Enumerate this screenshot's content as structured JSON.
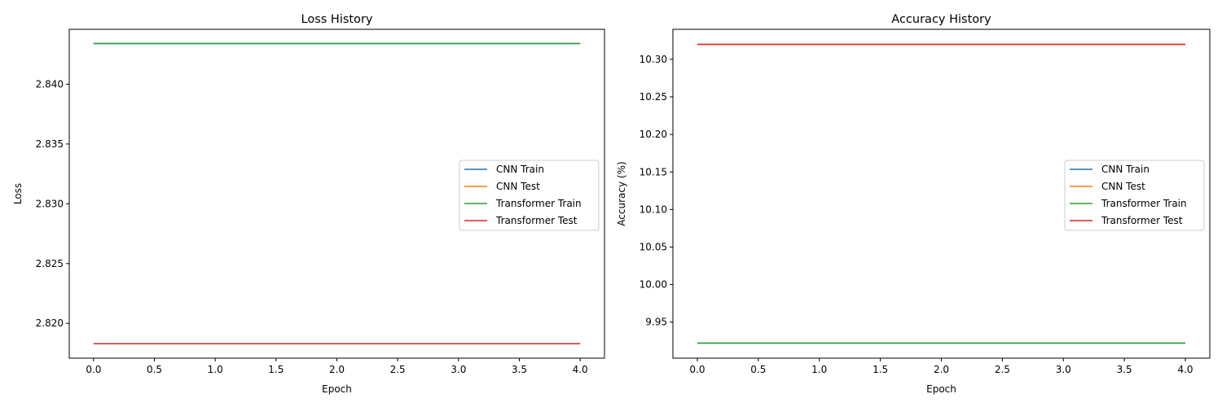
{
  "chart_data": [
    {
      "type": "line",
      "title": "Loss History",
      "xlabel": "Epoch",
      "ylabel": "Loss",
      "x": [
        0,
        1,
        2,
        3,
        4
      ],
      "xlim": [
        -0.2,
        4.2
      ],
      "ylim": [
        2.81709,
        2.84459
      ],
      "xticks": [
        0.0,
        0.5,
        1.0,
        1.5,
        2.0,
        2.5,
        3.0,
        3.5,
        4.0
      ],
      "xtick_labels": [
        "0.0",
        "0.5",
        "1.0",
        "1.5",
        "2.0",
        "2.5",
        "3.0",
        "3.5",
        "4.0"
      ],
      "yticks": [
        2.82,
        2.825,
        2.83,
        2.835,
        2.84
      ],
      "ytick_labels": [
        "2.820",
        "2.825",
        "2.830",
        "2.835",
        "2.840"
      ],
      "grid": false,
      "legend_position": "center-right",
      "series": [
        {
          "name": "CNN Train",
          "color": "#1f77b4",
          "values": [
            2.8434,
            2.8434,
            2.8434,
            2.8434,
            2.8434
          ]
        },
        {
          "name": "CNN Test",
          "color": "#ff7f0e",
          "values": [
            2.8183,
            2.8183,
            2.8183,
            2.8183,
            2.8183
          ]
        },
        {
          "name": "Transformer Train",
          "color": "#2ca02c",
          "values": [
            2.8434,
            2.8434,
            2.8434,
            2.8434,
            2.8434
          ]
        },
        {
          "name": "Transformer Test",
          "color": "#d62728",
          "values": [
            2.8183,
            2.8183,
            2.8183,
            2.8183,
            2.8183
          ]
        }
      ]
    },
    {
      "type": "line",
      "title": "Accuracy History",
      "xlabel": "Epoch",
      "ylabel": "Accuracy (%)",
      "x": [
        0,
        1,
        2,
        3,
        4
      ],
      "xlim": [
        -0.2,
        4.2
      ],
      "ylim": [
        9.902,
        10.34
      ],
      "xticks": [
        0.0,
        0.5,
        1.0,
        1.5,
        2.0,
        2.5,
        3.0,
        3.5,
        4.0
      ],
      "xtick_labels": [
        "0.0",
        "0.5",
        "1.0",
        "1.5",
        "2.0",
        "2.5",
        "3.0",
        "3.5",
        "4.0"
      ],
      "yticks": [
        9.95,
        10.0,
        10.05,
        10.1,
        10.15,
        10.2,
        10.25,
        10.3
      ],
      "ytick_labels": [
        "9.95",
        "10.00",
        "10.05",
        "10.10",
        "10.15",
        "10.20",
        "10.25",
        "10.30"
      ],
      "grid": false,
      "legend_position": "center-right",
      "series": [
        {
          "name": "CNN Train",
          "color": "#1f77b4",
          "values": [
            9.922,
            9.922,
            9.922,
            9.922,
            9.922
          ]
        },
        {
          "name": "CNN Test",
          "color": "#ff7f0e",
          "values": [
            10.32,
            10.32,
            10.32,
            10.32,
            10.32
          ]
        },
        {
          "name": "Transformer Train",
          "color": "#2ca02c",
          "values": [
            9.922,
            9.922,
            9.922,
            9.922,
            9.922
          ]
        },
        {
          "name": "Transformer Test",
          "color": "#d62728",
          "values": [
            10.32,
            10.32,
            10.32,
            10.32,
            10.32
          ]
        }
      ]
    }
  ]
}
